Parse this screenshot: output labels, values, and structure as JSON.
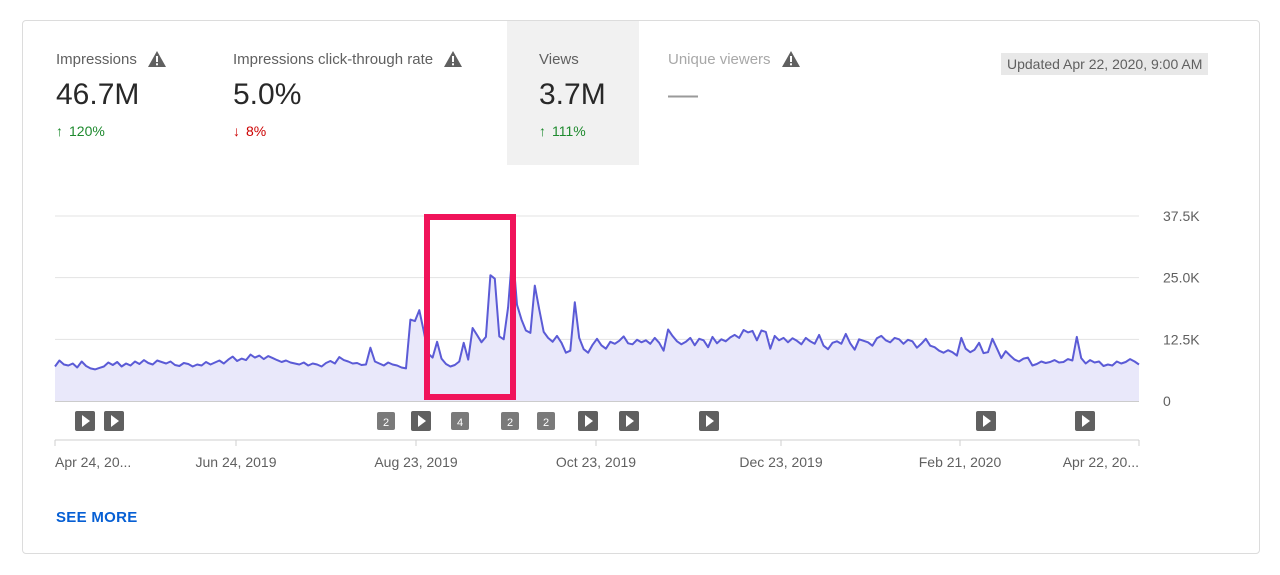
{
  "metrics": [
    {
      "label": "Impressions",
      "value": "46.7M",
      "delta": "120%",
      "direction": "up",
      "warning_icon": "warning-icon"
    },
    {
      "label": "Impressions click-through rate",
      "value": "5.0%",
      "delta": "8%",
      "direction": "down",
      "warning_icon": "warning-icon"
    },
    {
      "label": "Views",
      "value": "3.7M",
      "delta": "111%",
      "direction": "up",
      "selected": true
    },
    {
      "label": "Unique viewers",
      "value": "—",
      "delta": "",
      "warning_icon": "warning-icon"
    }
  ],
  "updated": "Updated Apr 22, 2020, 9:00 AM",
  "see_more": "SEE MORE",
  "colors": {
    "line": "#5b5bd6",
    "area": "#e9e8fa",
    "up": "#1e8a2e",
    "down": "#cc0000",
    "highlight_box": "#f0145a",
    "link": "#065fd4"
  },
  "chart_data": {
    "type": "area",
    "ylim": [
      0,
      37500
    ],
    "yticks": [
      "0",
      "12.5K",
      "25.0K",
      "37.5K"
    ],
    "ytick_values": [
      0,
      12500,
      25000,
      37500
    ],
    "xticks": [
      "Apr 24, 20...",
      "Jun 24, 2019",
      "Aug 23, 2019",
      "Oct 23, 2019",
      "Dec 23, 2019",
      "Feb 21, 2020",
      "Apr 22, 20..."
    ],
    "series": [
      {
        "values": [
          7000,
          8200,
          7400,
          7200,
          7600,
          6800,
          8000,
          7100,
          6600,
          6400,
          6700,
          7000,
          7800,
          7300,
          7900,
          7000,
          7600,
          7200,
          8000,
          7500,
          8300,
          7700,
          7400,
          8200,
          7900,
          7600,
          8000,
          7300,
          7100,
          7700,
          7500,
          7000,
          7400,
          7200,
          7900,
          7400,
          7800,
          8200,
          7600,
          8400,
          9000,
          8100,
          8600,
          8300,
          9400,
          8800,
          9200,
          8500,
          9100,
          8700,
          8300,
          7900,
          8200,
          7800,
          7600,
          7400,
          7800,
          7200,
          7600,
          7400,
          7000,
          7700,
          8100,
          7600,
          8900,
          8300,
          8000,
          7600,
          7700,
          7300,
          7400,
          10800,
          8000,
          7600,
          7200,
          7800,
          7400,
          7200,
          6800,
          6600,
          16500,
          16200,
          18400,
          14200,
          9600,
          8800,
          12000,
          8600,
          7500,
          7000,
          7300,
          8000,
          11800,
          8400,
          14800,
          13400,
          11900,
          13000,
          25500,
          24800,
          13100,
          12500,
          19000,
          30600,
          19500,
          16500,
          14300,
          13800,
          23400,
          18600,
          14000,
          12800,
          12000,
          13200,
          11800,
          9800,
          10200,
          20000,
          12800,
          10500,
          9800,
          11400,
          12600,
          11300,
          10600,
          12000,
          11600,
          12200,
          13100,
          11700,
          11500,
          12400,
          11900,
          12300,
          11600,
          12800,
          11800,
          10200,
          14500,
          13200,
          12100,
          11500,
          12000,
          12800,
          11300,
          12600,
          12300,
          10900,
          13000,
          11700,
          12500,
          12100,
          12900,
          13400,
          12800,
          14400,
          13900,
          14200,
          12300,
          14300,
          14000,
          10600,
          13200,
          12300,
          12800,
          11900,
          12700,
          12200,
          11500,
          12800,
          12100,
          11600,
          13400,
          11200,
          10500,
          11800,
          12100,
          11600,
          13600,
          11700,
          10400,
          12500,
          12200,
          11900,
          11200,
          12700,
          13200,
          12300,
          11900,
          12800,
          12500,
          11600,
          12400,
          12100,
          10800,
          11600,
          12600,
          11200,
          10900,
          10200,
          9800,
          10300,
          9900,
          9200,
          12800,
          10600,
          9900,
          10400,
          11800,
          9700,
          9900,
          12600,
          10700,
          8700,
          10100,
          9200,
          8400,
          8000,
          8600,
          8800,
          7200,
          7500,
          8000,
          7700,
          7900,
          8300,
          7800,
          7900,
          8500,
          8200,
          13000,
          8700,
          7600,
          8300,
          7800,
          8000,
          7100,
          7400,
          7200,
          8000,
          7600,
          7900,
          8500,
          8000,
          7400
        ]
      }
    ],
    "markers": [
      {
        "kind": "play"
      },
      {
        "kind": "play"
      },
      {
        "kind": "count",
        "label": "2"
      },
      {
        "kind": "play"
      },
      {
        "kind": "count",
        "label": "4"
      },
      {
        "kind": "count",
        "label": "2"
      },
      {
        "kind": "count",
        "label": "2"
      },
      {
        "kind": "play"
      },
      {
        "kind": "play"
      },
      {
        "kind": "play"
      },
      {
        "kind": "play"
      },
      {
        "kind": "play"
      }
    ]
  }
}
